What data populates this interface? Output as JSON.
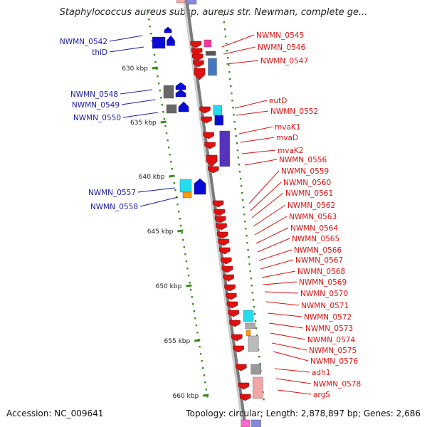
{
  "title": "Staphylococcus aureus subsp. aureus str. Newman, complete ge...",
  "footer": {
    "accession": "Accession: NC_009641",
    "topology": "Topology: circular; Length: 2,878,897 bp; Genes: 2,686"
  },
  "colors": {
    "forward_gene": "#0a0ad8",
    "reverse_gene": "#e01010",
    "forward_label": "#1a1aa8",
    "reverse_label": "#dd1111",
    "tick": "#3a8a1a",
    "backbone": "#9a9a9a"
  },
  "scale": {
    "unit": "kbp",
    "labels": [
      "630 kbp",
      "635 kbp",
      "640 kbp",
      "645 kbp",
      "650 kbp",
      "655 kbp",
      "660 kbp"
    ]
  },
  "forward_genes": [
    "NWMN_0542",
    "thiD",
    "NWMN_0548",
    "NWMN_0549",
    "NWMN_0550",
    "NWMN_0557",
    "NWMN_0558"
  ],
  "reverse_genes": [
    "NWMN_0545",
    "NWMN_0546",
    "NWMN_0547",
    "eutD",
    "NWMN_0552",
    "mvaK1",
    "mvaD",
    "mvaK2",
    "NWMN_0556",
    "NWMN_0559",
    "NWMN_0560",
    "NWMN_0561",
    "NWMN_0562",
    "NWMN_0563",
    "NWMN_0564",
    "NWMN_0565",
    "NWMN_0566",
    "NWMN_0567",
    "NWMN_0568",
    "NWMN_0569",
    "NWMN_0570",
    "NWMN_0571",
    "NWMN_0572",
    "NWMN_0573",
    "NWMN_0574",
    "NWMN_0575",
    "NWMN_0576",
    "adh1",
    "NWMN_0578",
    "argS"
  ]
}
